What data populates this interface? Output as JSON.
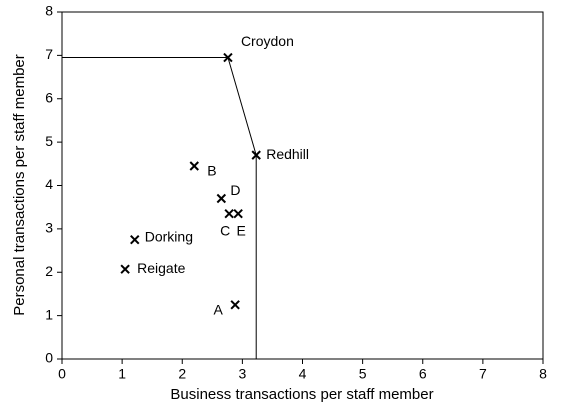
{
  "chart_data": {
    "type": "scatter",
    "x_label": "Business transactions per staff member",
    "y_label": "Personal transactions per staff member",
    "xlim": [
      0,
      8
    ],
    "ylim": [
      0,
      8
    ],
    "xticks": [
      0,
      1,
      2,
      3,
      4,
      5,
      6,
      7,
      8
    ],
    "yticks": [
      0,
      1,
      2,
      3,
      4,
      5,
      6,
      7,
      8
    ],
    "color": "#000000",
    "frontier": {
      "x": [
        0,
        2.76,
        3.23,
        3.23
      ],
      "values": [
        6.95,
        6.95,
        4.7,
        0
      ]
    },
    "points": {
      "labels": [
        "Croydon",
        "Redhill",
        "B",
        "D",
        "C",
        "E",
        "Dorking",
        "Reigate",
        "A"
      ],
      "x": [
        2.76,
        3.23,
        2.2,
        2.65,
        2.78,
        2.93,
        1.21,
        1.05,
        2.88
      ],
      "values": [
        6.95,
        4.7,
        4.45,
        3.7,
        3.35,
        3.35,
        2.75,
        2.07,
        1.25
      ]
    }
  }
}
